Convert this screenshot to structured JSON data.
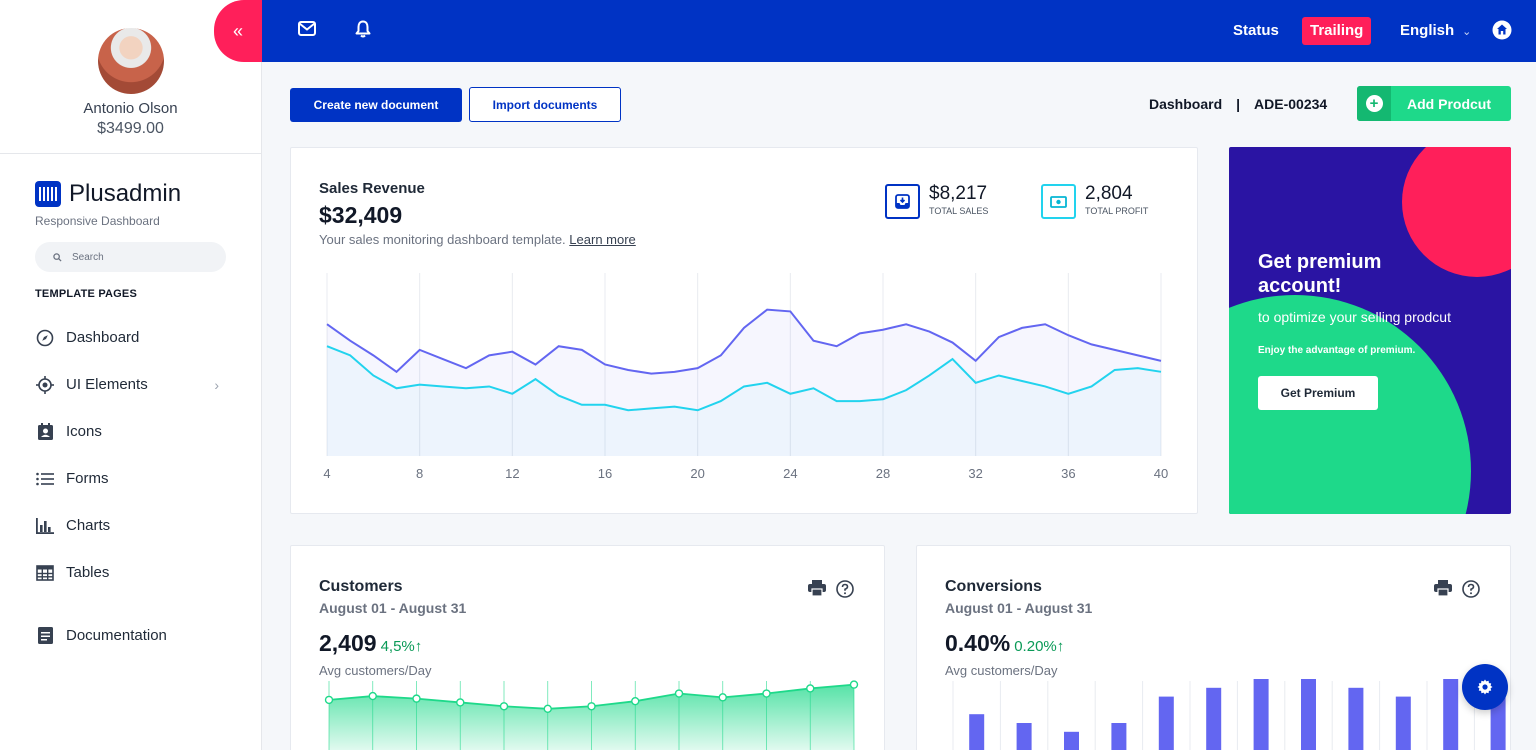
{
  "profile": {
    "name": "Antonio Olson",
    "amount": "$3499.00"
  },
  "sidebar": {
    "collapse_icon": "«",
    "brand": "Plusadmin",
    "brand_sub": "Responsive Dashboard",
    "search_placeholder": "Search",
    "section_title": "TEMPLATE PAGES",
    "items": [
      {
        "label": "Dashboard",
        "icon": "compass-icon"
      },
      {
        "label": "UI Elements",
        "icon": "target-icon",
        "has_submenu": true
      },
      {
        "label": "Icons",
        "icon": "contact-card-icon"
      },
      {
        "label": "Forms",
        "icon": "list-icon"
      },
      {
        "label": "Charts",
        "icon": "bar-chart-icon"
      },
      {
        "label": "Tables",
        "icon": "table-icon"
      }
    ],
    "doc_label": "Documentation"
  },
  "topbar": {
    "status": "Status",
    "trailing": "Trailing",
    "language": "English"
  },
  "actions": {
    "create": "Create new document",
    "import": "Import documents",
    "crumb_page": "Dashboard",
    "crumb_sep": "|",
    "crumb_id": "ADE-00234",
    "add_product": "Add Prodcut"
  },
  "revenue": {
    "title": "Sales Revenue",
    "total": "$32,409",
    "subtitle": "Your sales monitoring dashboard template.",
    "learn_more": "Learn more",
    "stats": [
      {
        "value": "$8,217",
        "label": "TOTAL SALES"
      },
      {
        "value": "2,804",
        "label": "TOTAL PROFIT"
      }
    ]
  },
  "premium": {
    "title": "Get premium account!",
    "subtitle": "to optimize your selling prodcut",
    "note": "Enjoy the advantage of premium.",
    "button": "Get Premium"
  },
  "customers": {
    "title": "Customers",
    "dates": "August 01 - August 31",
    "value": "2,409",
    "change": "4,5%↑",
    "note": "Avg customers/Day"
  },
  "conversions": {
    "title": "Conversions",
    "dates": "August 01 - August 31",
    "value": "0.40%",
    "change": "0.20%↑",
    "note": "Avg customers/Day"
  },
  "colors": {
    "brand_blue": "#0033c4",
    "accent_pink": "#ff1f5a",
    "accent_green": "#1ed98a",
    "series_purple": "#6366f1",
    "series_cyan": "#22d3ee"
  },
  "chart_data": [
    {
      "type": "area",
      "title": "Sales Revenue",
      "x_ticks": [
        4,
        8,
        12,
        16,
        20,
        24,
        28,
        32,
        36,
        40
      ],
      "x": [
        4,
        5,
        6,
        7,
        8,
        9,
        10,
        11,
        12,
        13,
        14,
        15,
        16,
        17,
        18,
        19,
        20,
        21,
        22,
        23,
        24,
        25,
        26,
        27,
        28,
        29,
        30,
        31,
        32,
        33,
        34,
        35,
        36,
        37,
        38,
        39,
        40
      ],
      "series": [
        {
          "values": [
            72,
            63,
            55,
            46,
            58,
            53,
            48,
            55,
            57,
            50,
            60,
            58,
            50,
            47,
            45,
            46,
            48,
            55,
            70,
            80,
            79,
            63,
            60,
            67,
            69,
            72,
            68,
            62,
            52,
            65,
            70,
            72,
            66,
            61,
            58,
            55,
            52
          ]
        },
        {
          "values": [
            60,
            55,
            44,
            37,
            39,
            38,
            37,
            38,
            34,
            42,
            33,
            28,
            28,
            25,
            26,
            27,
            25,
            30,
            38,
            40,
            34,
            37,
            30,
            30,
            31,
            36,
            44,
            53,
            40,
            44,
            41,
            38,
            34,
            38,
            47,
            48,
            46
          ]
        }
      ],
      "ylim": [
        0,
        100
      ]
    },
    {
      "type": "area",
      "title": "Customers",
      "values": [
        44,
        47,
        45,
        42,
        39,
        37,
        39,
        43,
        49,
        46,
        49,
        53,
        56
      ]
    },
    {
      "type": "bar",
      "title": "Conversions",
      "values": [
        38,
        30,
        22,
        30,
        54,
        62,
        70,
        70,
        62,
        54,
        70,
        62
      ]
    }
  ]
}
